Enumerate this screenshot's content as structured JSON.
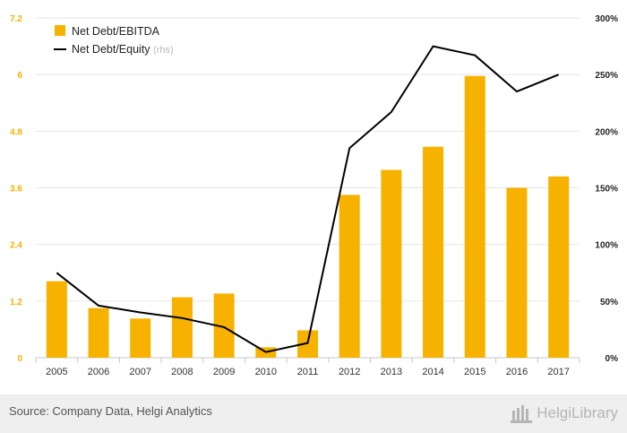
{
  "chart_data": {
    "type": "bar",
    "categories": [
      "2005",
      "2006",
      "2007",
      "2008",
      "2009",
      "2010",
      "2011",
      "2012",
      "2013",
      "2014",
      "2015",
      "2016",
      "2017"
    ],
    "series": [
      {
        "name": "Net Debt/EBITDA",
        "type": "bar",
        "axis": "left",
        "color": "#f7b200",
        "values": [
          1.62,
          1.05,
          0.83,
          1.28,
          1.36,
          0.22,
          0.58,
          3.45,
          3.98,
          4.47,
          5.97,
          3.6,
          3.84
        ]
      },
      {
        "name": "Net Debt/Equity",
        "type": "line",
        "axis": "right",
        "color": "#000000",
        "values": [
          75,
          46,
          40,
          35,
          27,
          5,
          13,
          185,
          217,
          275,
          267,
          235,
          250
        ]
      }
    ],
    "legend": [
      {
        "label": "Net Debt/EBITDA",
        "suffix": ""
      },
      {
        "label": "Net Debt/Equity",
        "suffix": "(rhs)"
      }
    ],
    "legend_position": "top-left",
    "y_left": {
      "min": 0,
      "max": 7.2,
      "ticks": [
        "0",
        "1.2",
        "2.4",
        "3.6",
        "4.8",
        "6",
        "7.2"
      ],
      "color": "#f7b200"
    },
    "y_right": {
      "min": 0,
      "max": 300,
      "ticks": [
        "0%",
        "50%",
        "100%",
        "150%",
        "200%",
        "250%",
        "300%"
      ]
    },
    "grid": true
  },
  "footer": {
    "source": "Source: Company Data, Helgi Analytics",
    "brand": "HelgiLibrary"
  }
}
